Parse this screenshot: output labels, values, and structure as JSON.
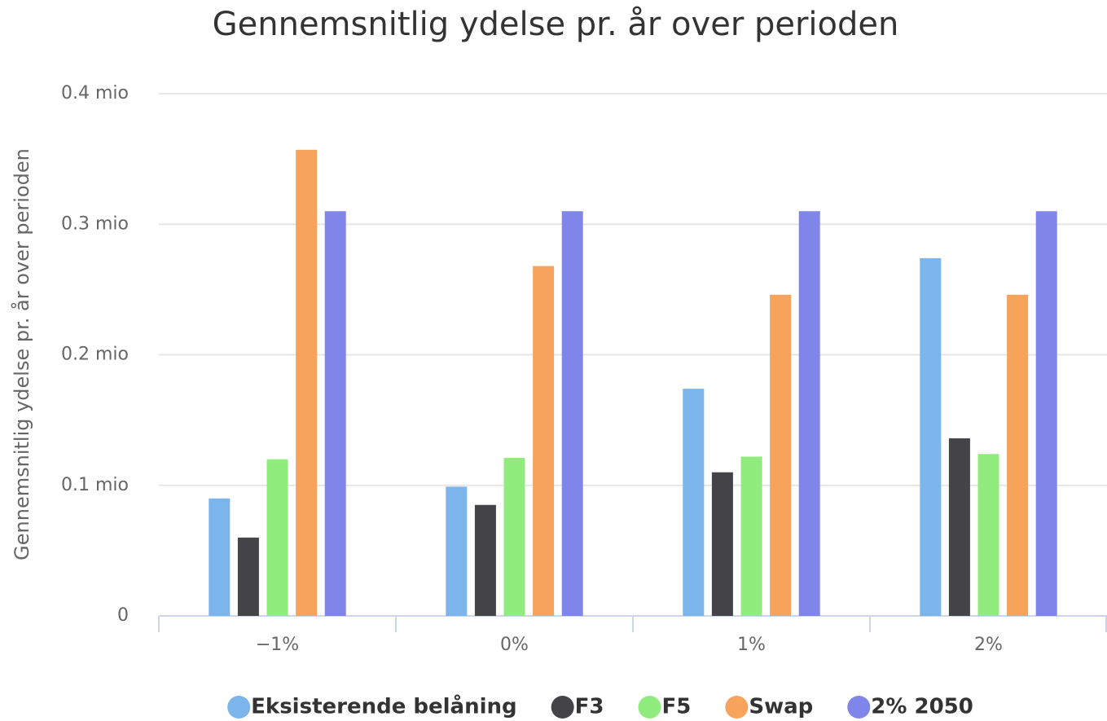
{
  "chart_data": {
    "type": "bar",
    "title": "Gennemsnitlig ydelse pr. år over perioden",
    "y_label": "Gennemsnitlig ydelse pr. år over perioden",
    "categories": [
      "−1%",
      "0%",
      "1%",
      "2%"
    ],
    "series": [
      {
        "name": "Eksisterende belåning",
        "color": "#7cb5ec",
        "values": [
          0.09,
          0.099,
          0.174,
          0.274
        ]
      },
      {
        "name": "F3",
        "color": "#434348",
        "values": [
          0.06,
          0.085,
          0.11,
          0.136
        ]
      },
      {
        "name": "F5",
        "color": "#90ed7d",
        "values": [
          0.12,
          0.121,
          0.122,
          0.124
        ]
      },
      {
        "name": "Swap",
        "color": "#f7a35c",
        "values": [
          0.357,
          0.268,
          0.246,
          0.246
        ]
      },
      {
        "name": "2% 2050",
        "color": "#8085e9",
        "values": [
          0.31,
          0.31,
          0.31,
          0.31
        ]
      }
    ],
    "ylim": [
      0,
      0.4
    ],
    "yticks": [
      0,
      {
        "value": 0.1,
        "label": "0.1 mio"
      },
      {
        "value": 0.2,
        "label": "0.2 mio"
      },
      {
        "value": 0.3,
        "label": "0.3 mio"
      },
      {
        "value": 0.4,
        "label": "0.4 mio"
      }
    ],
    "grid": true,
    "legend": "bottom"
  }
}
